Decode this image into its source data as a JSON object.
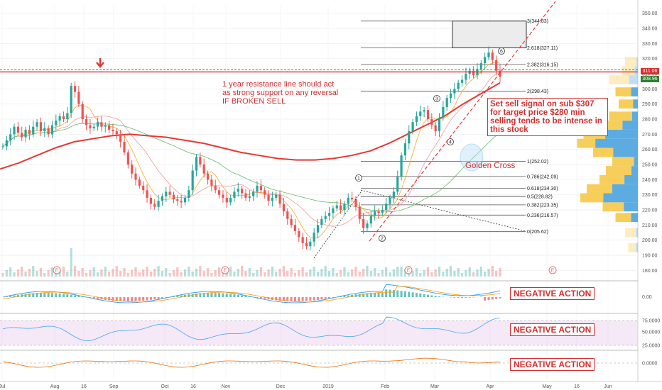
{
  "chart_data": {
    "type": "candlestick",
    "x_axis": {
      "ticks": [
        "Jul",
        "Aug",
        "16",
        "Sep",
        "Oct",
        "16",
        "Nov",
        "Dec",
        "2019",
        "Feb",
        "Mar",
        "Apr",
        "May",
        "16",
        "Jun"
      ]
    },
    "y_axis": {
      "scale": "linear",
      "ylim": [
        175,
        355
      ],
      "ticks": [
        180,
        190,
        200,
        210,
        220,
        230,
        240,
        250,
        260,
        270,
        280,
        290,
        300,
        310,
        320,
        330,
        340,
        350
      ]
    },
    "last_price": "311.06",
    "prev_price": "308.96",
    "price_path": [
      262,
      266,
      270,
      275,
      271,
      268,
      273,
      270,
      275,
      278,
      272,
      274,
      270,
      276,
      279,
      282,
      280,
      284,
      302,
      298,
      290,
      280,
      276,
      274,
      275,
      278,
      275,
      276,
      273,
      272,
      270,
      265,
      258,
      250,
      244,
      240,
      236,
      233,
      228,
      224,
      222,
      226,
      229,
      232,
      230,
      227,
      226,
      225,
      228,
      233,
      246,
      255,
      250,
      244,
      240,
      236,
      233,
      230,
      228,
      225,
      228,
      232,
      234,
      231,
      228,
      229,
      232,
      236,
      233,
      230,
      226,
      228,
      230,
      224,
      219,
      214,
      210,
      206,
      202,
      198,
      196,
      199,
      205,
      210,
      214,
      216,
      218,
      221,
      223,
      220,
      224,
      228,
      227,
      222,
      214,
      208,
      211,
      216,
      219,
      218,
      220,
      224,
      228,
      232,
      242,
      256,
      264,
      272,
      278,
      282,
      285,
      286,
      280,
      276,
      272,
      281,
      288,
      294,
      297,
      300,
      304,
      306,
      310,
      312,
      309,
      313,
      317,
      321,
      324,
      319,
      312,
      308
    ],
    "moving_averages": [
      {
        "color": "#e53935",
        "label_in_chart": false,
        "path": [
          247,
          251,
          256,
          261,
          265,
          267,
          269,
          270,
          269,
          268,
          266,
          264,
          261,
          258,
          256,
          254,
          253,
          253,
          254,
          256,
          259,
          264,
          270,
          276,
          282,
          290,
          297,
          304
        ]
      },
      {
        "color": "#66bb6a",
        "label_in_chart": false
      },
      {
        "color": "#ffa726",
        "label_in_chart": false
      }
    ],
    "resistance_line": {
      "price": 311.2,
      "label": "1 year resistance line should act as strong support on any reversal IF BROKEN SELL"
    },
    "fibonacci": [
      {
        "label": "0(205.62)",
        "price": 205.62
      },
      {
        "label": "0.236(216.57)",
        "price": 216.57
      },
      {
        "label": "0.382(223.35)",
        "price": 223.35
      },
      {
        "label": "0.5(228.82)",
        "price": 228.82
      },
      {
        "label": "0.618(234.30)",
        "price": 234.3
      },
      {
        "label": "0.786(242.09)",
        "price": 242.09
      },
      {
        "label": "1(252.02)",
        "price": 252.02
      },
      {
        "label": "2(298.43)",
        "price": 298.43
      },
      {
        "label": "2.382(316.15)",
        "price": 316.15
      },
      {
        "label": "2.618(327.11)",
        "price": 327.11
      },
      {
        "label": "3(344.83)",
        "price": 344.83
      }
    ],
    "wave_labels": [
      "1",
      "2",
      "3",
      "4",
      "6"
    ],
    "annotations": {
      "golden_cross": "Golden Cross",
      "sell_signal": "Set sell signal on sub $307 for target price $280 min selling tends to be intense in this stock",
      "earnings_marker": "E"
    },
    "indicator_panels": [
      {
        "name": "macd",
        "label": "NEGATIVE ACTION",
        "ticks": [
          "0.00"
        ]
      },
      {
        "name": "rsi",
        "label": "NEGATIVE ACTION",
        "ticks": [
          "75.0000",
          "50.0000",
          "25.0000"
        ]
      },
      {
        "name": "momentum",
        "label": "NEGATIVE ACTION",
        "ticks": [
          "0.0000"
        ]
      }
    ]
  },
  "colors": {
    "up": "#26a69a",
    "down": "#ef5350",
    "resistance": "#d32f2f",
    "ma200": "#e53935",
    "volume_profile_up": "#4aa3df",
    "volume_profile_down": "#f7c948"
  }
}
